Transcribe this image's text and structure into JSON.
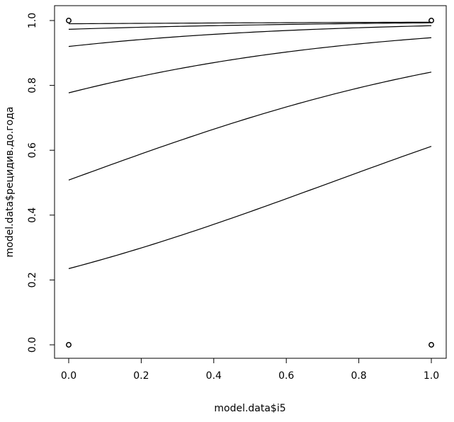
{
  "chart_data": {
    "type": "line",
    "xlabel": "model.data$i5",
    "ylabel": "model.data$рецидив.до.года",
    "xlim": [
      -0.04,
      1.04
    ],
    "ylim": [
      -0.04,
      1.04
    ],
    "x_ticks": [
      0.0,
      0.2,
      0.4,
      0.6,
      0.8,
      1.0
    ],
    "x_tick_labels": [
      "0.0",
      "0.2",
      "0.4",
      "0.6",
      "0.8",
      "1.0"
    ],
    "y_ticks": [
      0.0,
      0.2,
      0.4,
      0.6,
      0.8,
      1.0
    ],
    "y_tick_labels": [
      "0.0",
      "0.2",
      "0.4",
      "0.6",
      "0.8",
      "1.0"
    ],
    "grid": false,
    "points": [
      {
        "x": 0,
        "y": 1
      },
      {
        "x": 0,
        "y": 0
      },
      {
        "x": 1,
        "y": 1
      },
      {
        "x": 1,
        "y": 0
      }
    ],
    "curves": [
      {
        "y0": 0.99,
        "y1": 0.995
      },
      {
        "y0": 0.973,
        "y1": 0.993
      },
      {
        "y0": 0.92,
        "y1": 0.984
      },
      {
        "y0": 0.777,
        "y1": 0.947
      },
      {
        "y0": 0.508,
        "y1": 0.841
      },
      {
        "y0": 0.235,
        "y1": 0.612
      }
    ]
  }
}
